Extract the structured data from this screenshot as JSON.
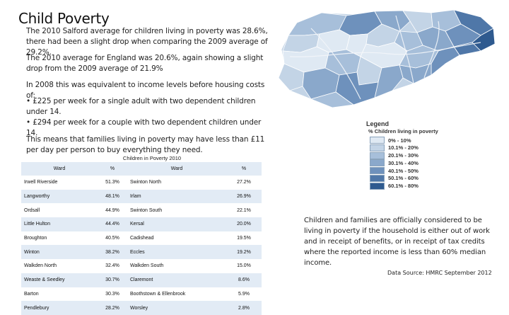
{
  "title": "Child Poverty",
  "paragraphs": {
    "p1": "The 2010 Salford average for children living in poverty was 28.6%, there had been a slight drop when comparing the 2009 average of 29.2%.",
    "p2": "The 2010 average for England was 20.6%, again showing a slight drop from the 2009 average of 21.9%",
    "p3": "In 2008 this was equivalent to income levels before housing costs of:",
    "p4a": "• £225 per week for a single adult with two dependent children under 14.",
    "p4b": "• £294 per week for a couple with two dependent children under 14.",
    "p5": "This means that families living in poverty may have less than £11 per day per person to buy everything they need."
  },
  "table": {
    "caption": "Children in Poverty 2010",
    "headers": [
      "Ward",
      "%",
      "Ward",
      "%"
    ],
    "rows": [
      [
        "Irwell Riverside",
        "51.3%",
        "Swinton North",
        "27.2%"
      ],
      [
        "Langworthy",
        "48.1%",
        "Irlam",
        "26.9%"
      ],
      [
        "Ordsall",
        "44.9%",
        "Swinton South",
        "22.1%"
      ],
      [
        "Little Hulton",
        "44.4%",
        "Kersal",
        "20.0%"
      ],
      [
        "Broughton",
        "40.5%",
        "Cadishead",
        "19.5%"
      ],
      [
        "Winton",
        "38.2%",
        "Eccles",
        "19.2%"
      ],
      [
        "Walkden North",
        "32.4%",
        "Walkden South",
        "15.0%"
      ],
      [
        "Weaste & Seedley",
        "30.7%",
        "Claremont",
        "8.6%"
      ],
      [
        "Barton",
        "30.3%",
        "Boothstown & Ellenbrook",
        "5.9%"
      ],
      [
        "Pendlebury",
        "28.2%",
        "Worsley",
        "2.8%"
      ]
    ]
  },
  "legend": {
    "title": "Legend",
    "subtitle": "% Children living in poverty",
    "items": [
      {
        "label": "0% - 10%",
        "color": "#dfe9f3"
      },
      {
        "label": "10.1% - 20%",
        "color": "#c3d4e6"
      },
      {
        "label": "20.1% - 30%",
        "color": "#a7bfda"
      },
      {
        "label": "30.1% - 40%",
        "color": "#8aa8cb"
      },
      {
        "label": "40.1% - 50%",
        "color": "#6e91bc"
      },
      {
        "label": "50.1% - 60%",
        "color": "#4f77a8"
      },
      {
        "label": "60.1% - 80%",
        "color": "#2f5a8f"
      }
    ]
  },
  "note": "Children and families are officially considered to be living in poverty if the household is either out of work and in receipt of benefits, or in receipt of tax credits where the reported income is less than 60% median income.",
  "source": "Data Source: HMRC September 2012"
}
